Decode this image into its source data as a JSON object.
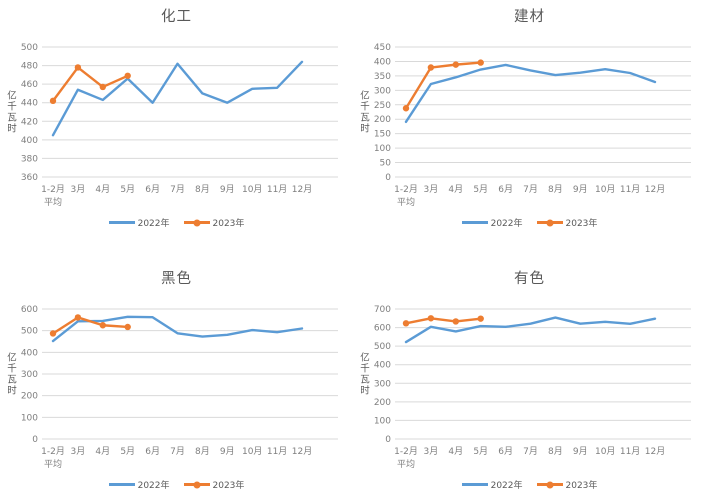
{
  "page": {
    "background": "#FFFFFF"
  },
  "colors": {
    "series_2022": "#5B9BD5",
    "series_2023": "#ED7D31",
    "gridline": "#D9D9D9",
    "tick_label": "#7F7F7F",
    "title_text": "#595959",
    "legend_text": "#595959"
  },
  "chart_data": [
    {
      "type": "line",
      "title": "化工",
      "ylabel": "亿千瓦时",
      "categories": [
        [
          "1-2月",
          "平均"
        ],
        [
          "3月"
        ],
        [
          "4月"
        ],
        [
          "5月"
        ],
        [
          "6月"
        ],
        [
          "7月"
        ],
        [
          "8月"
        ],
        [
          "9月"
        ],
        [
          "10月"
        ],
        [
          "11月"
        ],
        [
          "12月"
        ]
      ],
      "ylim": [
        360,
        500
      ],
      "ystep": 20,
      "grid": true,
      "legend_position": "bottom",
      "series": [
        {
          "name": "2022年",
          "color": "#5B9BD5",
          "marker": false,
          "values": [
            405,
            454,
            443,
            466,
            440,
            482,
            450,
            440,
            455,
            456,
            484
          ]
        },
        {
          "name": "2023年",
          "color": "#ED7D31",
          "marker": true,
          "values": [
            442,
            478,
            457,
            469
          ]
        }
      ]
    },
    {
      "type": "line",
      "title": "建材",
      "ylabel": "亿千瓦时",
      "categories": [
        [
          "1-2月",
          "平均"
        ],
        [
          "3月"
        ],
        [
          "4月"
        ],
        [
          "5月"
        ],
        [
          "6月"
        ],
        [
          "7月"
        ],
        [
          "8月"
        ],
        [
          "9月"
        ],
        [
          "10月"
        ],
        [
          "11月"
        ],
        [
          "12月"
        ]
      ],
      "ylim": [
        0,
        450
      ],
      "ystep": 50,
      "grid": true,
      "legend_position": "bottom",
      "series": [
        {
          "name": "2022年",
          "color": "#5B9BD5",
          "marker": false,
          "values": [
            191,
            322,
            345,
            372,
            388,
            369,
            353,
            361,
            373,
            360,
            329
          ]
        },
        {
          "name": "2023年",
          "color": "#ED7D31",
          "marker": true,
          "values": [
            238,
            379,
            389,
            396
          ]
        }
      ]
    },
    {
      "type": "line",
      "title": "黑色",
      "ylabel": "亿千瓦时",
      "categories": [
        [
          "1-2月",
          "平均"
        ],
        [
          "3月"
        ],
        [
          "4月"
        ],
        [
          "5月"
        ],
        [
          "6月"
        ],
        [
          "7月"
        ],
        [
          "8月"
        ],
        [
          "9月"
        ],
        [
          "10月"
        ],
        [
          "11月"
        ],
        [
          "12月"
        ]
      ],
      "ylim": [
        0,
        600
      ],
      "ystep": 100,
      "grid": true,
      "legend_position": "bottom",
      "series": [
        {
          "name": "2022年",
          "color": "#5B9BD5",
          "marker": false,
          "values": [
            452,
            543,
            545,
            564,
            562,
            488,
            473,
            481,
            503,
            493,
            510
          ]
        },
        {
          "name": "2023年",
          "color": "#ED7D31",
          "marker": true,
          "values": [
            487,
            561,
            525,
            517
          ]
        }
      ]
    },
    {
      "type": "line",
      "title": "有色",
      "ylabel": "亿千瓦时",
      "categories": [
        [
          "1-2月",
          "平均"
        ],
        [
          "3月"
        ],
        [
          "4月"
        ],
        [
          "5月"
        ],
        [
          "6月"
        ],
        [
          "7月"
        ],
        [
          "8月"
        ],
        [
          "9月"
        ],
        [
          "10月"
        ],
        [
          "11月"
        ],
        [
          "12月"
        ]
      ],
      "ylim": [
        0,
        700
      ],
      "ystep": 100,
      "grid": true,
      "legend_position": "bottom",
      "series": [
        {
          "name": "2022年",
          "color": "#5B9BD5",
          "marker": false,
          "values": [
            522,
            604,
            579,
            608,
            604,
            621,
            654,
            621,
            631,
            620,
            648
          ]
        },
        {
          "name": "2023年",
          "color": "#ED7D31",
          "marker": true,
          "values": [
            623,
            650,
            633,
            648
          ]
        }
      ]
    }
  ]
}
